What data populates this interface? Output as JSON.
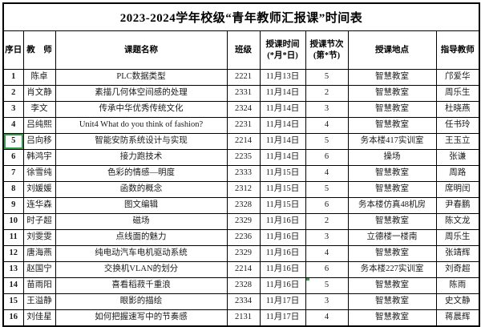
{
  "title": "2023-2024学年校级“青年教师汇报课”时间表",
  "accent_green": "#2F9E44",
  "table": {
    "column_names": [
      "index",
      "teacher",
      "topic",
      "class",
      "date",
      "period",
      "location",
      "mentor"
    ],
    "headers": [
      {
        "line1": "序日",
        "line2": ""
      },
      {
        "line1": "教　师",
        "line2": ""
      },
      {
        "line1": "课题名称",
        "line2": ""
      },
      {
        "line1": "班级",
        "line2": ""
      },
      {
        "line1": "授课时间",
        "line2": "(*月*日)"
      },
      {
        "line1": "授课节次",
        "line2": "(第*节)"
      },
      {
        "line1": "授课地点",
        "line2": ""
      },
      {
        "line1": "指导教师",
        "line2": ""
      }
    ],
    "rows": [
      [
        "1",
        "陈卓",
        "PLC数据类型",
        "2221",
        "11月13日",
        "5",
        "智慧教室",
        "邝爱华"
      ],
      [
        "2",
        "肖文静",
        "素描几何体空间感的处理",
        "2331",
        "11月14日",
        "2",
        "智慧教室",
        "周乐生"
      ],
      [
        "3",
        "李文",
        "传承中华优秀传统文化",
        "2324",
        "11月14日",
        "3",
        "智慧教室",
        "杜晓燕"
      ],
      [
        "4",
        "吕纯熙",
        "Unit4 What do you think of fashion?",
        "2231",
        "11月14日",
        "4",
        "智慧教室",
        "任书玲"
      ],
      [
        "5",
        "吕向移",
        "智能安防系统设计与实现",
        "2214",
        "11月14日",
        "5",
        "务本楼417实训室",
        "王玉立"
      ],
      [
        "6",
        "韩鸿宇",
        "接力跑技术",
        "2235",
        "11月14日",
        "6",
        "操场",
        "张谦"
      ],
      [
        "7",
        "徐雪纯",
        "色彩的情感—明度",
        "2333",
        "11月15日",
        "4",
        "智慧教室",
        "周路"
      ],
      [
        "8",
        "刘媛媛",
        "函数的概念",
        "2312",
        "11月15日",
        "5",
        "智慧教室",
        "席明闰"
      ],
      [
        "9",
        "连华森",
        "图文编辑",
        "2328",
        "11月15日",
        "6",
        "务本楼仿真48机房",
        "尹春鹏"
      ],
      [
        "10",
        "时子超",
        "磁场",
        "2329",
        "11月16日",
        "2",
        "智慧教室",
        "陈文龙"
      ],
      [
        "11",
        "刘雯雯",
        "点线面的魅力",
        "2236",
        "11月16日",
        "3",
        "立德楼一楼南",
        "周乐生"
      ],
      [
        "12",
        "唐海燕",
        "纯电动汽车电机驱动系统",
        "2329",
        "11月16日",
        "4",
        "智慧教室",
        "张靖辉"
      ],
      [
        "13",
        "赵国宁",
        "交换机VLAN的划分",
        "2214",
        "11月16日",
        "6",
        "务本楼227实训室",
        "刘奇超"
      ],
      [
        "14",
        "苗雨阳",
        "喜看稻菽千重浪",
        "2328",
        "11月16日",
        "5",
        "智慧教室",
        "陈雨"
      ],
      [
        "15",
        "王溢静",
        "眼影的描绘",
        "2334",
        "11月17日",
        "3",
        "智慧教室",
        "史文静"
      ],
      [
        "16",
        "刘佳星",
        "如何把握速写中的节奏感",
        "2131",
        "11月17日",
        "4",
        "智慧教室",
        "蒋晨辉"
      ]
    ]
  },
  "ui": {
    "selection": {
      "row_index": 4,
      "column_index": 0
    },
    "comment_marker": {
      "row_index": 13,
      "column_index": 5
    }
  }
}
